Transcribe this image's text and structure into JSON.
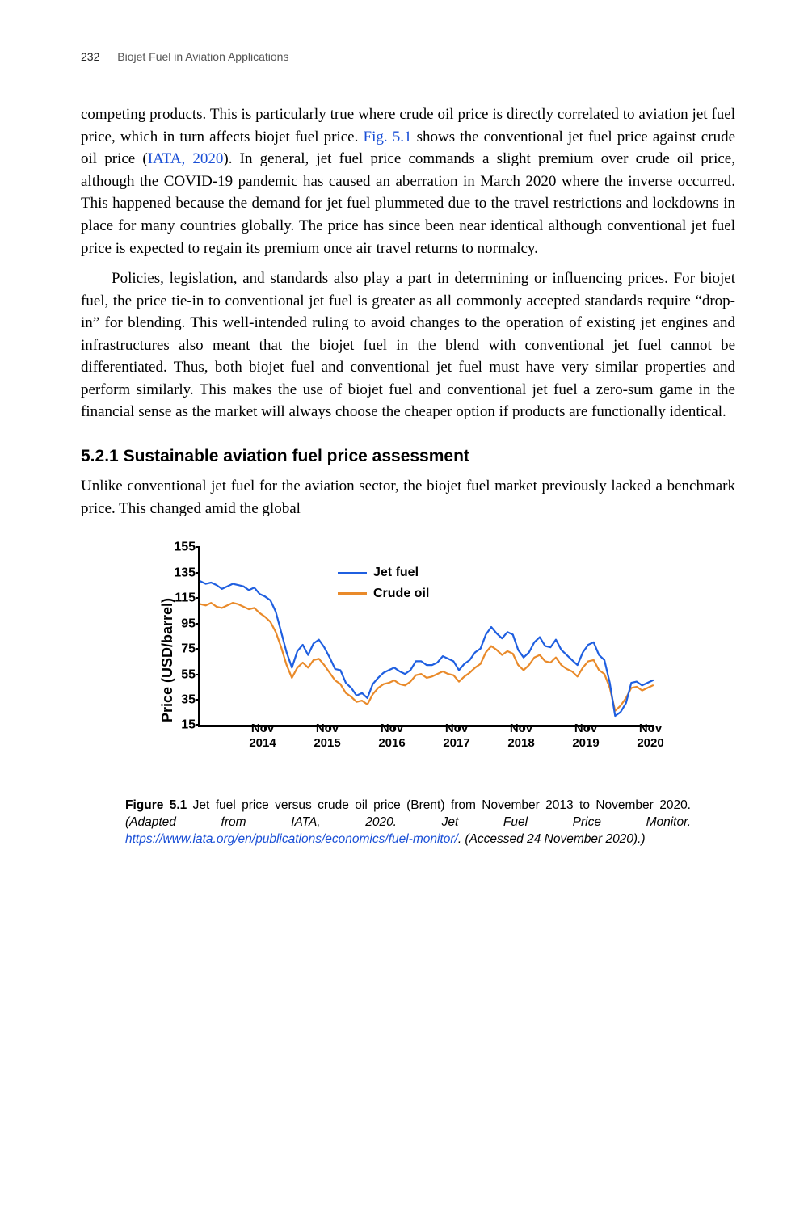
{
  "header": {
    "page_number": "232",
    "running_title": "Biojet Fuel in Aviation Applications"
  },
  "paragraphs": {
    "p1_a": "competing products. This is particularly true where crude oil price is directly correlated to aviation jet fuel price, which in turn affects biojet fuel price. ",
    "p1_link1": "Fig. 5.1",
    "p1_b": " shows the conventional jet fuel price against crude oil price (",
    "p1_link2": "IATA, 2020",
    "p1_c": "). In general, jet fuel price commands a slight premium over crude oil price, although the COVID-19 pandemic has caused an aberration in March 2020 where the inverse occurred. This happened because the demand for jet fuel plummeted due to the travel restrictions and lockdowns in place for many countries globally. The price has since been near identical although conventional jet fuel price is expected to regain its premium once air travel returns to normalcy.",
    "p2": "Policies, legislation, and standards also play a part in determining or influencing prices. For biojet fuel, the price tie-in to conventional jet fuel is greater as all commonly accepted standards require “drop-in” for blending. This well-intended ruling to avoid changes to the operation of existing jet engines and infrastructures also meant that the biojet fuel in the blend with conventional jet fuel cannot be differentiated. Thus, both biojet fuel and conventional jet fuel must have very similar properties and perform similarly. This makes the use of biojet fuel and conventional jet fuel a zero-sum game in the financial sense as the market will always choose the cheaper option if products are functionally identical.",
    "p3": "Unlike conventional jet fuel for the aviation sector, the biojet fuel market previously lacked a benchmark price. This changed amid the global"
  },
  "section": {
    "number": "5.2.1",
    "title": "Sustainable aviation fuel price assessment"
  },
  "figure": {
    "type": "line",
    "ylabel": "Price (USD/barrel)",
    "ylim": [
      15,
      155
    ],
    "ytick_step": 20,
    "yticks": [
      15,
      35,
      55,
      75,
      95,
      115,
      135,
      155
    ],
    "xticks": [
      "Nov\n2014",
      "Nov\n2015",
      "Nov\n2016",
      "Nov\n2017",
      "Nov\n2018",
      "Nov\n2019",
      "Nov\n2020"
    ],
    "x_count": 85,
    "x_first_tick_index": 12,
    "x_tick_spacing": 12,
    "legend": [
      {
        "label": "Jet fuel",
        "color": "#1f5fe0"
      },
      {
        "label": "Crude oil",
        "color": "#e98a2a"
      }
    ],
    "series": {
      "jet_fuel": {
        "color": "#1f5fe0",
        "line_width": 2.2,
        "values": [
          128,
          126,
          127,
          125,
          122,
          124,
          126,
          125,
          124,
          121,
          123,
          118,
          116,
          113,
          104,
          88,
          72,
          60,
          73,
          78,
          70,
          79,
          82,
          76,
          68,
          59,
          58,
          48,
          44,
          38,
          40,
          36,
          47,
          52,
          56,
          58,
          60,
          57,
          55,
          58,
          65,
          65,
          62,
          62,
          64,
          69,
          67,
          65,
          58,
          63,
          66,
          72,
          75,
          86,
          92,
          87,
          83,
          88,
          86,
          74,
          68,
          72,
          80,
          84,
          77,
          76,
          82,
          74,
          70,
          66,
          62,
          72,
          78,
          80,
          70,
          66,
          48,
          22,
          25,
          32,
          48,
          49,
          46,
          48,
          50
        ]
      },
      "crude_oil": {
        "color": "#e98a2a",
        "line_width": 2.2,
        "values": [
          110,
          109,
          111,
          108,
          107,
          109,
          111,
          110,
          108,
          106,
          107,
          103,
          100,
          96,
          88,
          76,
          62,
          52,
          60,
          64,
          60,
          66,
          67,
          62,
          56,
          50,
          47,
          40,
          37,
          33,
          34,
          31,
          39,
          44,
          47,
          48,
          50,
          47,
          46,
          49,
          54,
          55,
          52,
          53,
          55,
          57,
          55,
          54,
          49,
          53,
          56,
          60,
          63,
          72,
          77,
          74,
          70,
          73,
          71,
          62,
          58,
          62,
          68,
          70,
          65,
          64,
          68,
          62,
          59,
          57,
          53,
          60,
          65,
          66,
          58,
          55,
          44,
          26,
          30,
          36,
          44,
          45,
          42,
          44,
          46
        ]
      }
    },
    "caption_bold": "Figure 5.1",
    "caption_a": " Jet fuel price versus crude oil price (Brent) from November 2013 to November 2020. ",
    "caption_ital_a": "(Adapted from IATA, 2020. Jet Fuel Price Monitor. ",
    "caption_link": "https://www.iata.org/en/publications/economics/fuel-monitor/",
    "caption_ital_b": ". (Accessed 24 November 2020).)",
    "background_color": "#ffffff",
    "axis_color": "#000000",
    "tick_fontsize": 16,
    "label_fontsize": 18
  }
}
